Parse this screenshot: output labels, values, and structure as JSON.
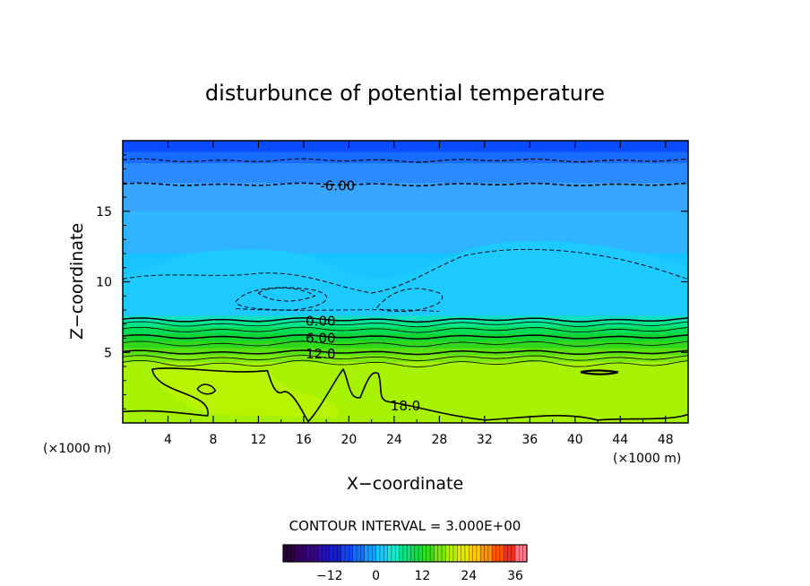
{
  "chart_data": {
    "type": "contour",
    "title": "disturbunce of potential temperature",
    "xlabel": "X−coordinate",
    "ylabel": "Z−coordinate",
    "x_unit": "(×1000 m)",
    "x_unit_right": "(×1000 m)",
    "xlim": [
      0,
      50
    ],
    "ylim": [
      0,
      20
    ],
    "xticks": [
      4,
      8,
      12,
      16,
      20,
      24,
      28,
      32,
      36,
      40,
      44,
      48
    ],
    "yticks": [
      5,
      10,
      15
    ],
    "contour_interval_text": "CONTOUR INTERVAL = 3.000E+00",
    "contour_labels": [
      {
        "text": "-6.00",
        "x": 19,
        "y": 16.8
      },
      {
        "text": "0.00",
        "x": 17.5,
        "y": 7.2
      },
      {
        "text": "6.00",
        "x": 17.5,
        "y": 6.0
      },
      {
        "text": "12.0",
        "x": 17.5,
        "y": 4.9
      },
      {
        "text": "18.0",
        "x": 25,
        "y": 1.2
      }
    ],
    "colorbar": {
      "range": [
        -24,
        39
      ],
      "ticks": [
        -12,
        0,
        12,
        24,
        36
      ],
      "tick_labels": [
        "−12",
        "0",
        "12",
        "24",
        "36"
      ]
    },
    "bands": [
      {
        "z_top": 20.0,
        "color": "#0a4cff"
      },
      {
        "z_top": 19.2,
        "color": "#1a6bff"
      },
      {
        "z_top": 18.4,
        "color": "#2a8cff"
      },
      {
        "z_top": 17.0,
        "color": "#38a6ff"
      },
      {
        "z_top": 15.0,
        "color": "#2fb4ff"
      },
      {
        "z_top": 12.0,
        "color": "#18c4ff"
      },
      {
        "z_top": 7.6,
        "color": "#11e0c0"
      },
      {
        "z_top": 7.2,
        "color": "#00e58a"
      },
      {
        "z_top": 6.8,
        "color": "#00dc55"
      },
      {
        "z_top": 6.3,
        "color": "#10d432"
      },
      {
        "z_top": 5.8,
        "color": "#30d81c"
      },
      {
        "z_top": 5.3,
        "color": "#58e010"
      },
      {
        "z_top": 4.8,
        "color": "#7fe808"
      },
      {
        "z_top": 4.3,
        "color": "#9cf000"
      }
    ]
  }
}
